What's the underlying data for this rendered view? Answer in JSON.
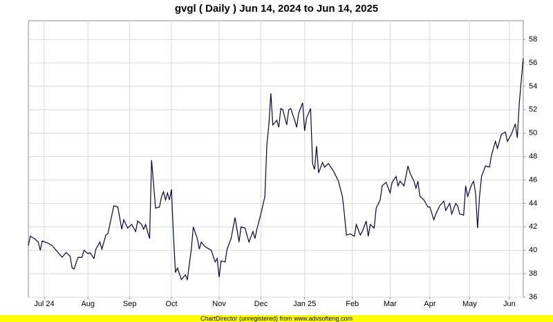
{
  "chart_data": {
    "type": "line",
    "title": "gvgl ( Daily ) Jun 14, 2024 to Jun 14, 2025",
    "footer": "ChartDirector (unregistered) from www.advsofteng.com",
    "grid": true,
    "xlim": [
      0,
      249
    ],
    "xticks": [
      {
        "value": 8,
        "label": "Jul 24"
      },
      {
        "value": 30,
        "label": "Aug"
      },
      {
        "value": 51,
        "label": "Sep"
      },
      {
        "value": 72,
        "label": "Oct"
      },
      {
        "value": 96,
        "label": "Nov"
      },
      {
        "value": 117,
        "label": "Dec"
      },
      {
        "value": 139,
        "label": "Jan 25"
      },
      {
        "value": 163,
        "label": "Feb"
      },
      {
        "value": 182,
        "label": "Mar"
      },
      {
        "value": 202,
        "label": "Apr"
      },
      {
        "value": 222,
        "label": "May"
      },
      {
        "value": 242,
        "label": "Jun"
      }
    ],
    "ylim": [
      36,
      59.6
    ],
    "yticks": [
      36,
      38,
      40,
      42,
      44,
      46,
      48,
      50,
      52,
      54,
      56,
      58
    ],
    "x": [
      0,
      1,
      3,
      5,
      6,
      7,
      10,
      12,
      14,
      15,
      17,
      19,
      21,
      22,
      23,
      25,
      27,
      28,
      30,
      31,
      33,
      34,
      36,
      37,
      39,
      40,
      41,
      43,
      45,
      47,
      48,
      50,
      52,
      54,
      55,
      57,
      58,
      59,
      61,
      62,
      64,
      66,
      67,
      68,
      69,
      70,
      71,
      72,
      73,
      74,
      75,
      77,
      79,
      80,
      82,
      83,
      85,
      86,
      87,
      89,
      92,
      94,
      95,
      96,
      97,
      99,
      100,
      102,
      104,
      106,
      107,
      109,
      111,
      113,
      114,
      115,
      117,
      119,
      120,
      121,
      122,
      123,
      125,
      126,
      127,
      128,
      130,
      131,
      132,
      134,
      135,
      136,
      138,
      139,
      140,
      142,
      143,
      144,
      145,
      146,
      148,
      149,
      151,
      153,
      154,
      156,
      158,
      159,
      160,
      162,
      164,
      165,
      167,
      168,
      170,
      171,
      172,
      174,
      175,
      177,
      178,
      180,
      182,
      183,
      185,
      186,
      187,
      189,
      191,
      192,
      194,
      195,
      196,
      197,
      199,
      201,
      202,
      204,
      205,
      207,
      209,
      210,
      212,
      213,
      215,
      216,
      217,
      219,
      220,
      221,
      223,
      224,
      225,
      226,
      227,
      228,
      230,
      232,
      233,
      235,
      236,
      238,
      240,
      241,
      243,
      245,
      246,
      247,
      249
    ],
    "series": [
      {
        "color": "#000040",
        "values": [
          40.4,
          41.2,
          41.0,
          40.7,
          40.0,
          40.8,
          40.6,
          40.4,
          40.0,
          39.8,
          39.4,
          39.8,
          39.5,
          38.5,
          38.4,
          39.4,
          39.4,
          40.0,
          39.7,
          39.8,
          39.3,
          40.1,
          40.7,
          40.1,
          41.3,
          41.4,
          42.2,
          43.8,
          43.7,
          41.8,
          42.6,
          41.9,
          42.2,
          41.6,
          42.5,
          42.2,
          41.8,
          42.2,
          41.0,
          47.7,
          43.6,
          43.7,
          44.6,
          45.0,
          44.3,
          44.9,
          44.3,
          45.2,
          41.3,
          38.1,
          38.5,
          37.5,
          37.9,
          37.5,
          40.1,
          42.0,
          41.0,
          40.1,
          40.7,
          40.3,
          40.0,
          39.0,
          39.3,
          37.7,
          39.1,
          39.0,
          40.1,
          41.0,
          42.8,
          40.7,
          42.0,
          41.9,
          40.7,
          41.6,
          41.0,
          41.8,
          43.1,
          44.6,
          49.0,
          50.7,
          53.4,
          50.7,
          51.1,
          50.5,
          52.1,
          52.0,
          50.7,
          52.0,
          52.1,
          51.1,
          50.5,
          51.7,
          52.6,
          50.2,
          51.3,
          52.1,
          47.4,
          46.9,
          48.9,
          46.6,
          47.5,
          47.1,
          47.4,
          46.9,
          46.6,
          45.9,
          44.6,
          43.1,
          41.3,
          41.4,
          41.2,
          42.2,
          41.3,
          41.6,
          42.5,
          41.2,
          42.2,
          41.9,
          43.6,
          44.3,
          45.5,
          45.8,
          44.9,
          45.8,
          46.3,
          45.5,
          45.9,
          45.5,
          47.2,
          46.6,
          45.9,
          45.3,
          45.9,
          44.6,
          44.3,
          43.7,
          43.7,
          42.6,
          43.1,
          43.8,
          44.2,
          43.4,
          44.0,
          43.1,
          44.0,
          43.8,
          43.1,
          43.0,
          45.5,
          44.6,
          45.6,
          45.9,
          44.9,
          41.9,
          44.6,
          46.3,
          47.2,
          47.1,
          48.1,
          49.3,
          48.7,
          49.9,
          50.1,
          49.3,
          49.9,
          50.8,
          49.6,
          52.6,
          56.4
        ]
      }
    ]
  }
}
